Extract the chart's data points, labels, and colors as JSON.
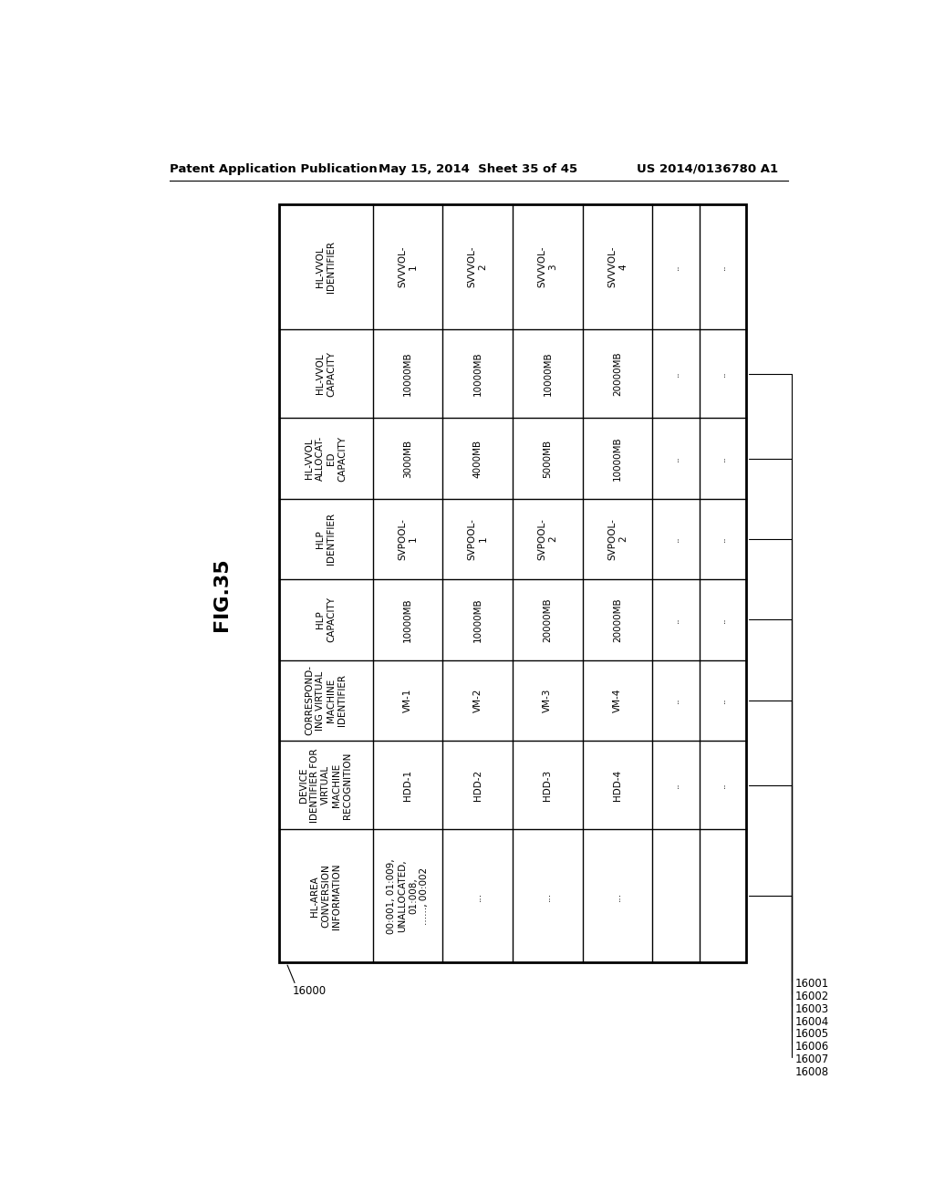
{
  "fig_label": "FIG.35",
  "header_left": "Patent Application Publication",
  "header_mid": "May 15, 2014  Sheet 35 of 45",
  "header_right": "US 2014/0136780 A1",
  "table_id": "16000",
  "row_ids": [
    "16001",
    "16002",
    "16003",
    "16004",
    "16005",
    "16006",
    "16007",
    "16008"
  ],
  "row_headers": [
    "HL-VVOL\nIDENTIFIER",
    "HL-VVOL\nCAPACITY",
    "HL-VVOL\nALLOCAT-\nED\nCAPACITY",
    "HLP\nIDENTIFIER",
    "HLP\nCAPACITY",
    "CORRESPOND-\nING VIRTUAL\nMACHINE\nIDENTIFIER",
    "DEVICE\nIDENTIFIER FOR\nVIRTUAL\nMACHINE\nRECOGNITION",
    "HL-AREA\nCONVERSION\nINFORMATION"
  ],
  "data_cols": [
    [
      "SVVVOL-\n1",
      "10000MB",
      "3000MB",
      "SVPOOL-\n1",
      "10000MB",
      "VM-1",
      "HDD-1",
      "00:001, 01:009,\nUNALLOCATED,\n01:008,\n......, 00:002"
    ],
    [
      "SVVVOL-\n2",
      "10000MB",
      "4000MB",
      "SVPOOL-\n1",
      "10000MB",
      "VM-2",
      "HDD-2",
      "..."
    ],
    [
      "SVVVOL-\n3",
      "10000MB",
      "5000MB",
      "SVPOOL-\n2",
      "20000MB",
      "VM-3",
      "HDD-3",
      "..."
    ],
    [
      "SVVVOL-\n4",
      "20000MB",
      "10000MB",
      "SVPOOL-\n2",
      "20000MB",
      "VM-4",
      "HDD-4",
      "..."
    ],
    [
      "..",
      "..",
      "..",
      "..",
      "..",
      "..",
      "..",
      ""
    ],
    [
      "..",
      "..",
      "..",
      "..",
      "..",
      "..",
      "..",
      ""
    ]
  ],
  "bg_color": "#ffffff",
  "line_color": "#000000",
  "text_color": "#000000"
}
